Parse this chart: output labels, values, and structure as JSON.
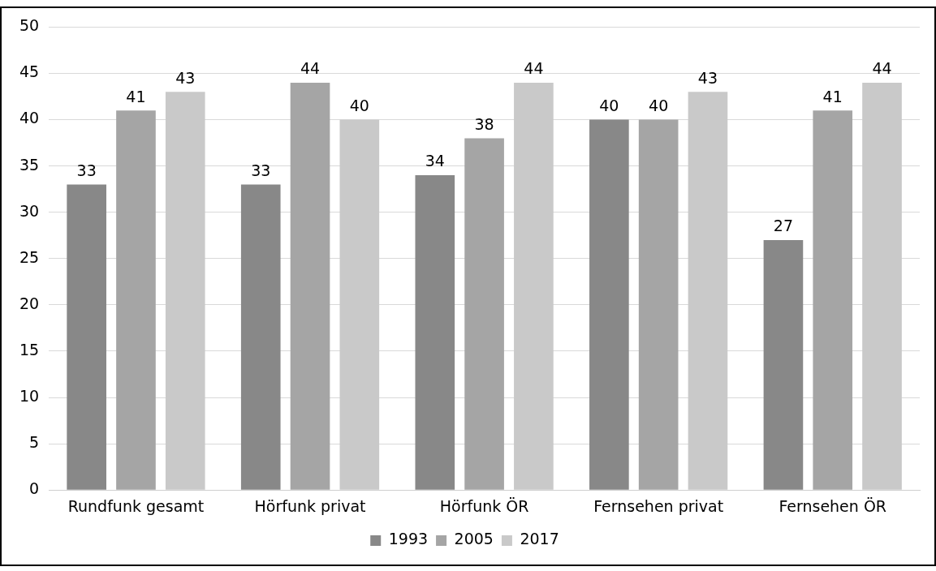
{
  "chart_data": {
    "type": "bar",
    "categories": [
      "Rundfunk gesamt",
      "Hörfunk privat",
      "Hörfunk ÖR",
      "Fernsehen privat",
      "Fernsehen ÖR"
    ],
    "series": [
      {
        "name": "1993",
        "color": "#888888",
        "values": [
          33,
          33,
          34,
          40,
          27
        ]
      },
      {
        "name": "2005",
        "color": "#a5a5a5",
        "values": [
          41,
          44,
          38,
          40,
          41
        ]
      },
      {
        "name": "2017",
        "color": "#c9c9c9",
        "values": [
          43,
          40,
          44,
          43,
          44
        ]
      }
    ],
    "ylim": [
      0,
      50
    ],
    "yticks": [
      0,
      5,
      10,
      15,
      20,
      25,
      30,
      35,
      40,
      45,
      50
    ],
    "grid": "y",
    "legend": "bottom",
    "data_labels": true
  }
}
